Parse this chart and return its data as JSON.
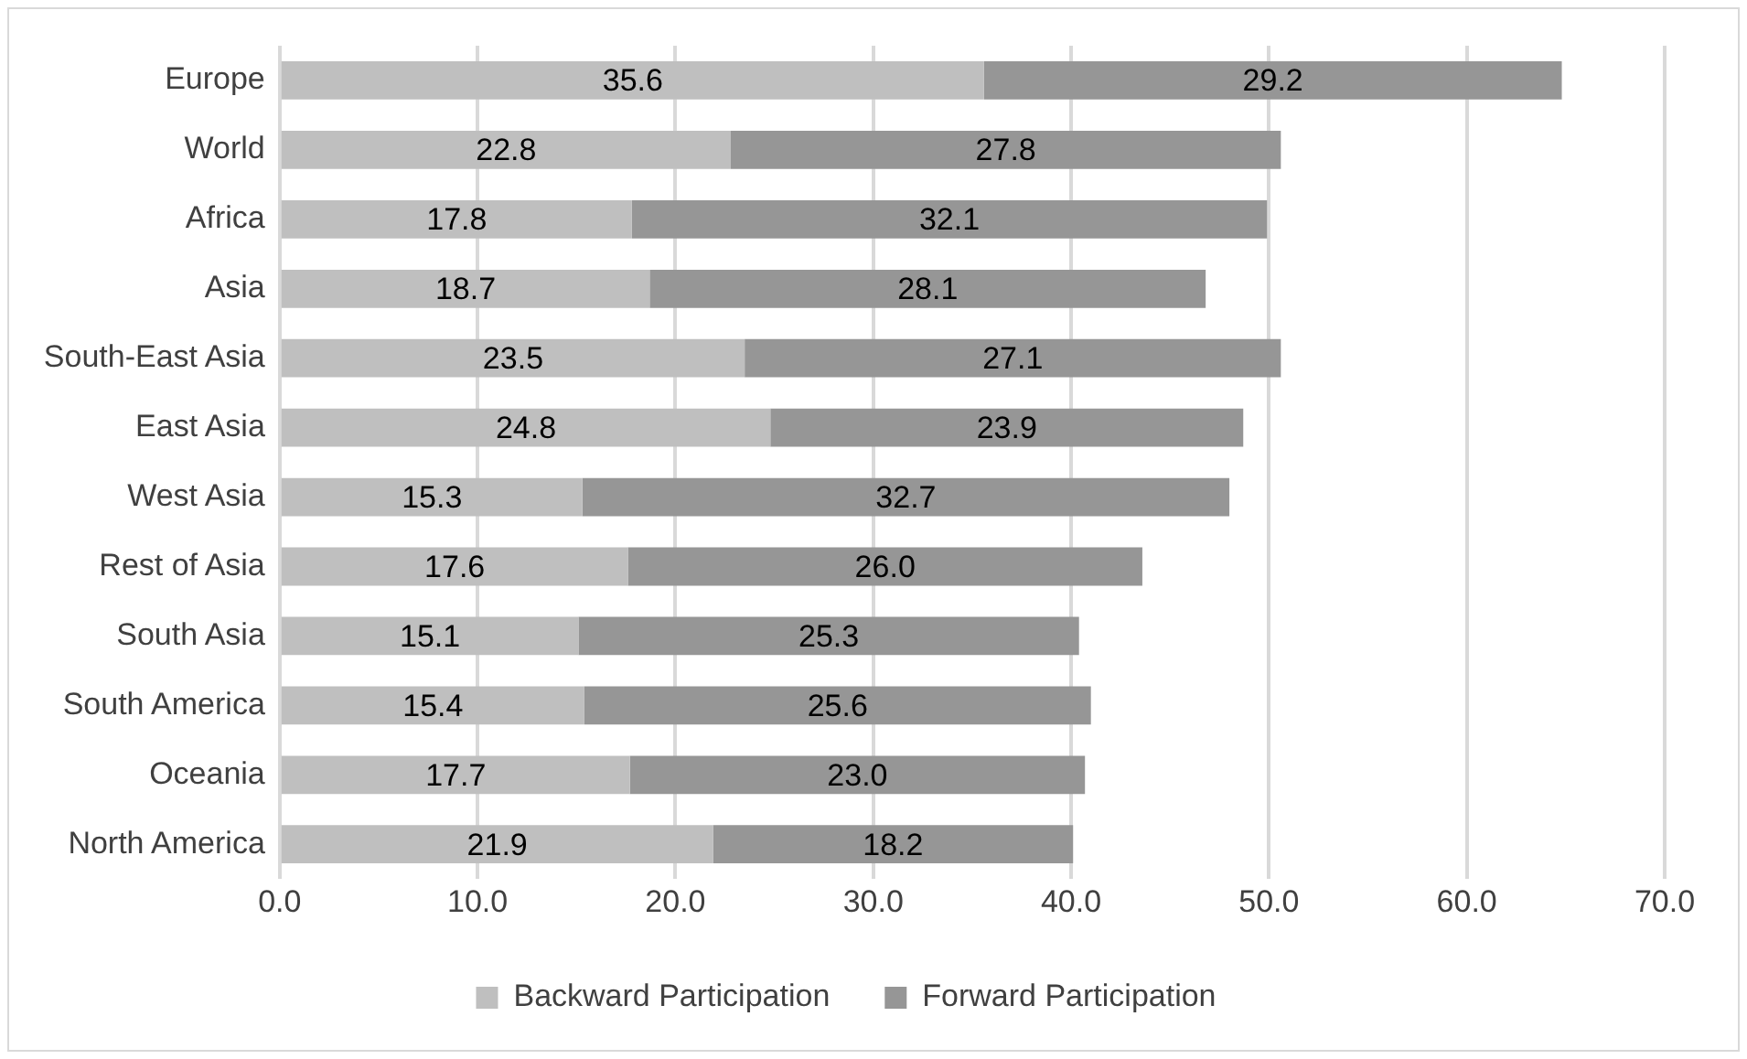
{
  "chart_data": {
    "type": "bar",
    "orientation": "horizontal",
    "stacked": true,
    "categories": [
      "Europe",
      "World",
      "Africa",
      "Asia",
      "South-East Asia",
      "East Asia",
      "West Asia",
      "Rest of Asia",
      "South Asia",
      "South America",
      "Oceania",
      "North America"
    ],
    "series": [
      {
        "name": "Backward Participation",
        "color": "#bfbfbf",
        "values": [
          35.6,
          22.8,
          17.8,
          18.7,
          23.5,
          24.8,
          15.3,
          17.6,
          15.1,
          15.4,
          17.7,
          21.9
        ],
        "value_labels": [
          "35.6",
          "22.8",
          "17.8",
          "18.7",
          "23.5",
          "24.8",
          "15.3",
          "17.6",
          "15.1",
          "15.4",
          "17.7",
          "21.9"
        ]
      },
      {
        "name": "Forward Participation",
        "color": "#969696",
        "values": [
          29.2,
          27.8,
          32.1,
          28.1,
          27.1,
          23.9,
          32.7,
          26.0,
          25.3,
          25.6,
          23.0,
          18.2
        ],
        "value_labels": [
          "29.2",
          "27.8",
          "32.1",
          "28.1",
          "27.1",
          "23.9",
          "32.7",
          "26.0",
          "25.3",
          "25.6",
          "23.0",
          "18.2"
        ]
      }
    ],
    "xlim": [
      0,
      70
    ],
    "xticks": [
      {
        "value": 0,
        "label": "0.0"
      },
      {
        "value": 10,
        "label": "10.0"
      },
      {
        "value": 20,
        "label": "20.0"
      },
      {
        "value": 30,
        "label": "30.0"
      },
      {
        "value": 40,
        "label": "40.0"
      },
      {
        "value": 50,
        "label": "50.0"
      },
      {
        "value": 60,
        "label": "60.0"
      },
      {
        "value": 70,
        "label": "70.0"
      }
    ],
    "grid": "x",
    "legend": "bottom"
  }
}
